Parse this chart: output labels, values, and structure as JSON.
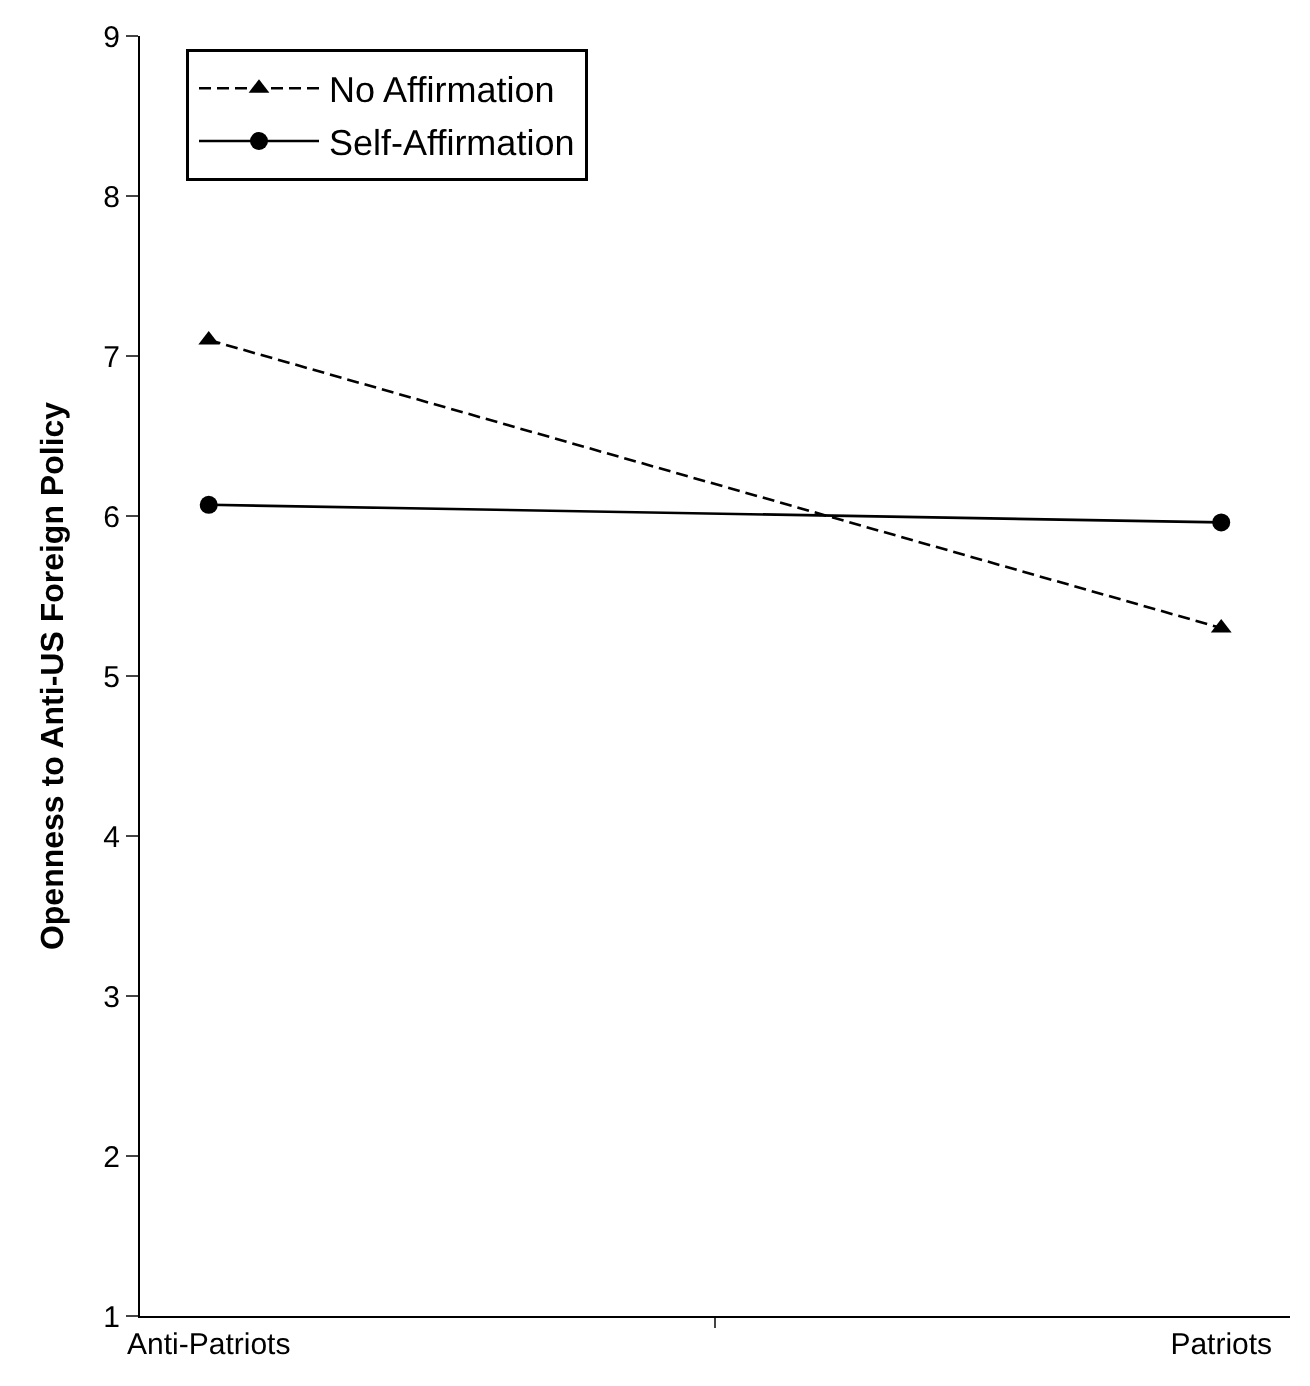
{
  "chart_data": {
    "type": "line",
    "ylabel": "Openness to Anti-US Foreign Policy",
    "categories": [
      "Anti-Patriots",
      "Patriots"
    ],
    "series": [
      {
        "name": "No Affirmation",
        "color": "#000000",
        "values": [
          7.1,
          5.3
        ],
        "marker": "triangle",
        "line_style": "dashed"
      },
      {
        "name": "Self-Affirmation",
        "color": "#000000",
        "values": [
          6.07,
          5.96
        ],
        "marker": "circle",
        "line_style": "solid"
      }
    ],
    "ylim": [
      1,
      9
    ],
    "yticks": [
      1,
      2,
      3,
      4,
      5,
      6,
      7,
      8,
      9
    ],
    "legend": "top left"
  }
}
